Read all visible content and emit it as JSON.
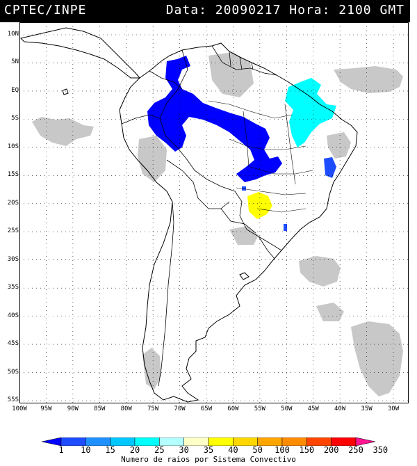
{
  "header": {
    "agency": "CPTEC/INPE",
    "datetime": "Data: 20090217 Hora: 2100 GMT"
  },
  "map": {
    "lat_labels": [
      "10N",
      "5N",
      "EQ",
      "5S",
      "10S",
      "15S",
      "20S",
      "25S",
      "30S",
      "35S",
      "40S",
      "45S",
      "50S",
      "55S"
    ],
    "lon_labels": [
      "100W",
      "95W",
      "90W",
      "85W",
      "80W",
      "75W",
      "70W",
      "65W",
      "60W",
      "55W",
      "50W",
      "45W",
      "40W",
      "35W",
      "30W"
    ],
    "lat_range": [
      10,
      -55
    ],
    "lon_range": [
      -100,
      -30
    ],
    "grid": "dotted",
    "cloud_color": "#c8c8c8"
  },
  "colorbar": {
    "labels": [
      "1",
      "10",
      "15",
      "20",
      "25",
      "30",
      "35",
      "40",
      "50",
      "100",
      "150",
      "200",
      "250",
      "350"
    ],
    "colors": [
      "#0000ff",
      "#1e4cff",
      "#1e90ff",
      "#00c8ff",
      "#00ffff",
      "#b4ffff",
      "#ffffc8",
      "#ffff00",
      "#ffd700",
      "#ffa500",
      "#ff8c00",
      "#ff4500",
      "#ff0000",
      "#ff1493"
    ],
    "title": "Numero de raios por Sistema Convectivo"
  }
}
